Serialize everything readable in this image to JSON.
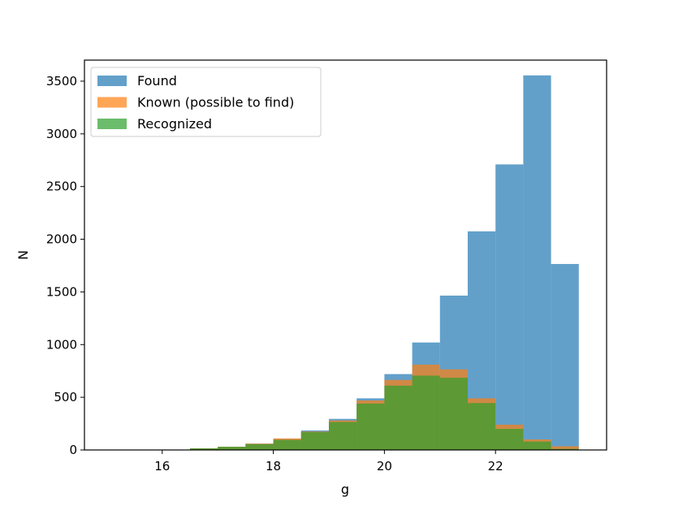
{
  "chart_data": {
    "type": "histogram",
    "title": "",
    "xlabel": "g",
    "ylabel": "N",
    "xlim": [
      14.6,
      24.0
    ],
    "ylim": [
      0,
      3700
    ],
    "xticks": [
      16,
      18,
      20,
      22
    ],
    "yticks": [
      0,
      500,
      1000,
      1500,
      2000,
      2500,
      3000,
      3500
    ],
    "bin_edges": [
      16.5,
      17.0,
      17.5,
      18.0,
      18.5,
      19.0,
      19.5,
      20.0,
      20.5,
      21.0,
      21.5,
      22.0,
      22.5,
      23.0,
      23.5
    ],
    "grid": false,
    "legend_position": "top-left",
    "series": [
      {
        "name": "Found",
        "color": "#1f77b4",
        "values": [
          15,
          30,
          60,
          105,
          185,
          295,
          490,
          720,
          1020,
          1465,
          2075,
          2710,
          3555,
          1765
        ]
      },
      {
        "name": "Known (possible to find)",
        "color": "#ff7f0e",
        "values": [
          15,
          30,
          60,
          110,
          175,
          280,
          470,
          665,
          810,
          765,
          490,
          240,
          100,
          35
        ]
      },
      {
        "name": "Recognized",
        "color": "#2ca02c",
        "values": [
          15,
          30,
          55,
          95,
          170,
          265,
          440,
          610,
          705,
          685,
          445,
          200,
          80,
          10
        ]
      }
    ]
  }
}
